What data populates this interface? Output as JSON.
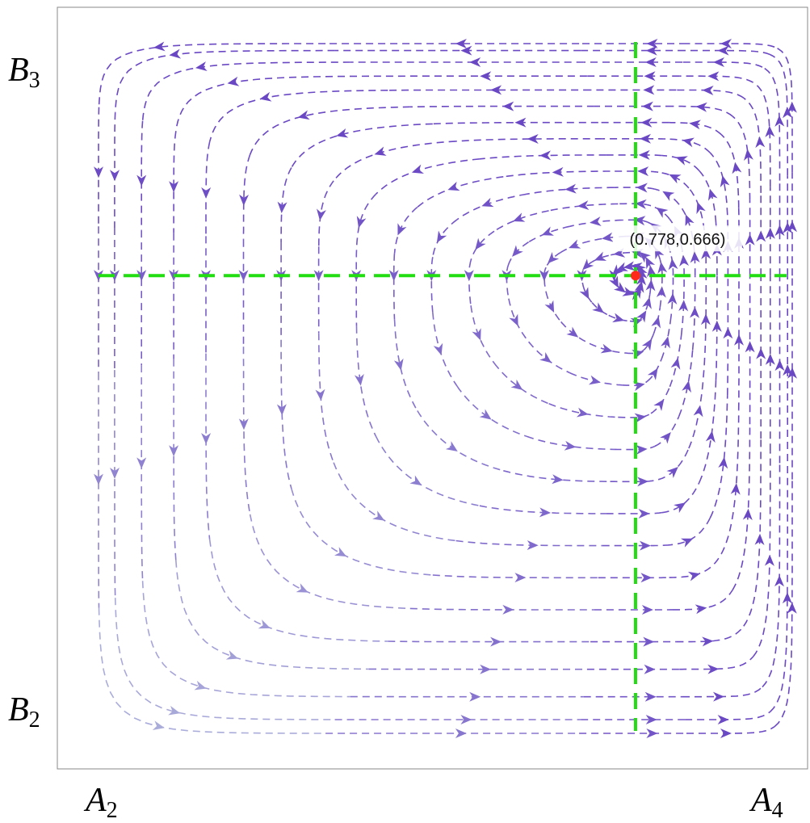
{
  "chart_data": {
    "type": "streamplot",
    "title": "",
    "x_axis": {
      "label_base": "A",
      "label_low_sub": "2",
      "label_high_sub": "4",
      "range": [
        0,
        1
      ]
    },
    "y_axis": {
      "label_base": "B",
      "label_low_sub": "2",
      "label_high_sub": "3",
      "range": [
        0,
        1
      ]
    },
    "equilibrium": {
      "x": 0.778,
      "y": 0.666,
      "label": "(0.778,0.666)",
      "color": "#ff2a1a"
    },
    "nullcline_color": "#22dd11",
    "flow_direction": "counterclockwise",
    "stream_color_fast": "#6a48c4",
    "stream_color_slow": "#c9dbe4",
    "frame_color": "#888888"
  }
}
